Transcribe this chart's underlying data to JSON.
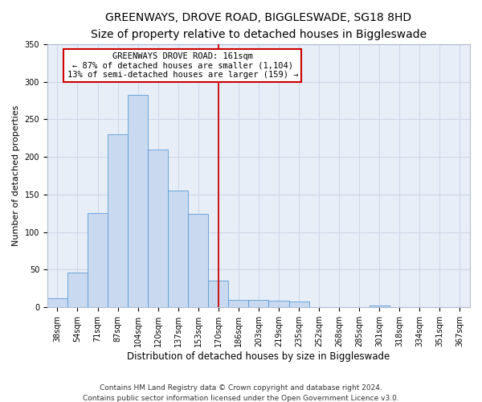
{
  "title": "GREENWAYS, DROVE ROAD, BIGGLESWADE, SG18 8HD",
  "subtitle": "Size of property relative to detached houses in Biggleswade",
  "xlabel": "Distribution of detached houses by size in Biggleswade",
  "ylabel": "Number of detached properties",
  "bar_labels": [
    "38sqm",
    "54sqm",
    "71sqm",
    "87sqm",
    "104sqm",
    "120sqm",
    "137sqm",
    "153sqm",
    "170sqm",
    "186sqm",
    "203sqm",
    "219sqm",
    "235sqm",
    "252sqm",
    "268sqm",
    "285sqm",
    "301sqm",
    "318sqm",
    "334sqm",
    "351sqm",
    "367sqm"
  ],
  "bar_values": [
    12,
    46,
    125,
    230,
    283,
    210,
    155,
    124,
    35,
    10,
    10,
    9,
    8,
    0,
    0,
    0,
    2,
    0,
    0,
    0,
    0
  ],
  "bar_color": "#c8d9f0",
  "bar_edge_color": "#5b9bd5",
  "vline_x_index": 8.0,
  "vline_color": "#cc0000",
  "annotation_title": "GREENWAYS DROVE ROAD: 161sqm",
  "annotation_line1": "← 87% of detached houses are smaller (1,104)",
  "annotation_line2": "13% of semi-detached houses are larger (159) →",
  "annotation_box_color": "#ffffff",
  "annotation_box_edge": "#cc0000",
  "footer1": "Contains HM Land Registry data © Crown copyright and database right 2024.",
  "footer2": "Contains public sector information licensed under the Open Government Licence v3.0.",
  "grid_color": "#d0d8e8",
  "bg_color": "#e8eef8",
  "ylim": [
    0,
    350
  ],
  "yticks": [
    0,
    50,
    100,
    150,
    200,
    250,
    300,
    350
  ],
  "title_fontsize": 10,
  "subtitle_fontsize": 9,
  "xlabel_fontsize": 8.5,
  "ylabel_fontsize": 8,
  "tick_fontsize": 7,
  "annotation_fontsize": 7.5,
  "footer_fontsize": 6.5
}
